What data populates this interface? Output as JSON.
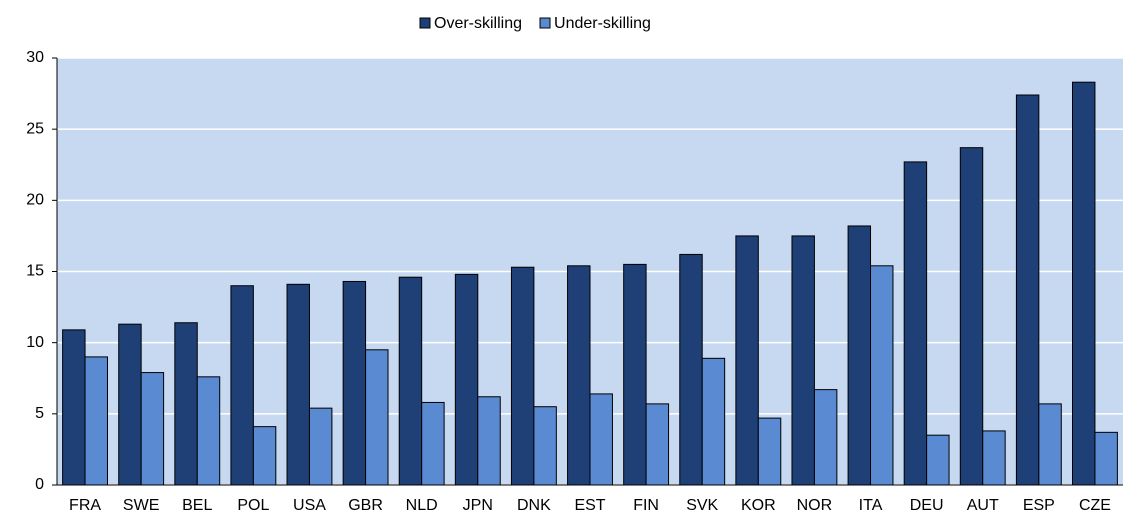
{
  "chart_data": {
    "type": "bar",
    "categories": [
      "FRA",
      "SWE",
      "BEL",
      "POL",
      "USA",
      "GBR",
      "NLD",
      "JPN",
      "DNK",
      "EST",
      "FIN",
      "SVK",
      "KOR",
      "NOR",
      "ITA",
      "DEU",
      "AUT",
      "ESP",
      "CZE"
    ],
    "series": [
      {
        "name": "Over-skilling",
        "color": "#1f3f77",
        "values": [
          10.9,
          11.3,
          11.4,
          14.0,
          14.1,
          14.3,
          14.6,
          14.8,
          15.3,
          15.4,
          15.5,
          16.2,
          17.5,
          17.5,
          18.2,
          22.7,
          23.7,
          27.4,
          28.3
        ]
      },
      {
        "name": "Under-skilling",
        "color": "#5a8ad2",
        "values": [
          9.0,
          7.9,
          7.6,
          4.1,
          5.4,
          9.5,
          5.8,
          6.2,
          5.5,
          6.4,
          5.7,
          8.9,
          4.7,
          6.7,
          15.4,
          3.5,
          3.8,
          5.7,
          3.7
        ]
      }
    ],
    "ylim": [
      0,
      30
    ],
    "yticks": [
      0,
      5,
      10,
      15,
      20,
      25,
      30
    ],
    "grid": true,
    "legend": "top"
  }
}
